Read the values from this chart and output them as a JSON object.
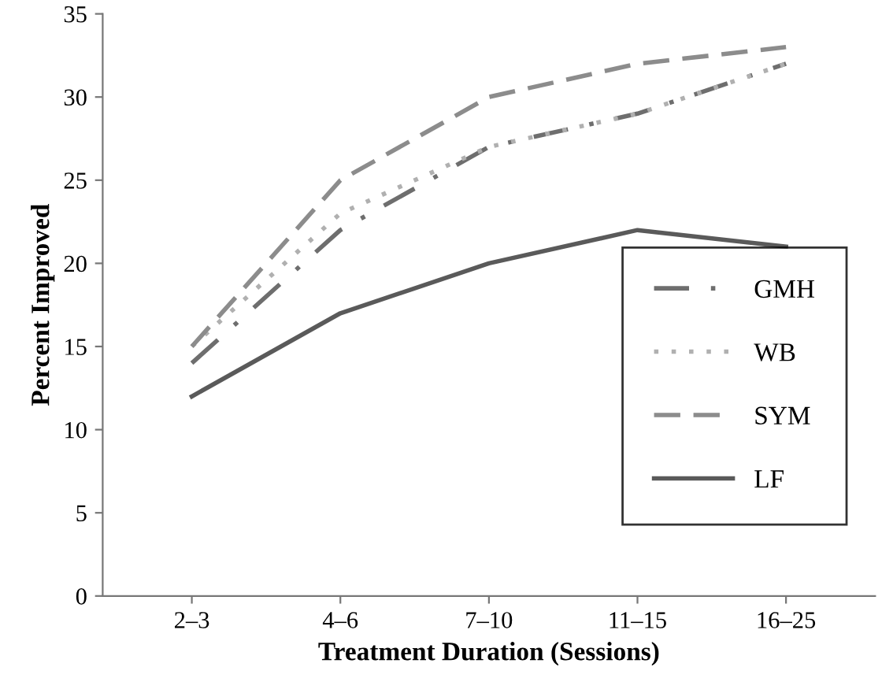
{
  "chart_data": {
    "type": "line",
    "xlabel": "Treatment Duration (Sessions)",
    "ylabel": "Percent Improved",
    "categories": [
      "2–3",
      "4–6",
      "7–10",
      "11–15",
      "16–25"
    ],
    "series": [
      {
        "name": "GMH",
        "color": "#6e6e6e",
        "line_style": "dashdot",
        "values": [
          14,
          22,
          27,
          29,
          32
        ]
      },
      {
        "name": "WB",
        "color": "#b0b0b0",
        "line_style": "dotted",
        "values": [
          15,
          23,
          27,
          29,
          32
        ]
      },
      {
        "name": "SYM",
        "color": "#8c8c8c",
        "line_style": "dashed",
        "values": [
          15,
          25,
          30,
          32,
          33
        ]
      },
      {
        "name": "LF",
        "color": "#5a5a5a",
        "line_style": "solid",
        "values": [
          12,
          17,
          20,
          22,
          21
        ]
      }
    ],
    "ylim": [
      0,
      35
    ],
    "yticks": [
      0,
      5,
      10,
      15,
      20,
      25,
      30,
      35
    ],
    "grid": false,
    "legend": "bottom right",
    "marker": "none"
  }
}
